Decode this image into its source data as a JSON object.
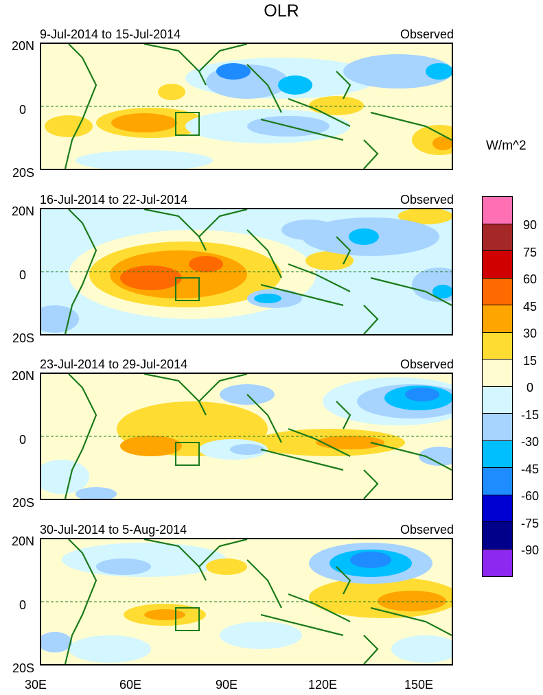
{
  "title": "OLR",
  "units": "W/m^2",
  "panels": [
    {
      "date": "9-Jul-2014 to 15-Jul-2014",
      "status": "Observed"
    },
    {
      "date": "16-Jul-2014 to 22-Jul-2014",
      "status": "Observed"
    },
    {
      "date": "23-Jul-2014 to 29-Jul-2014",
      "status": "Observed"
    },
    {
      "date": "30-Jul-2014 to 5-Aug-2014",
      "status": "Observed"
    }
  ],
  "lat_labels": [
    "20N",
    "0",
    "20S"
  ],
  "lon_labels": [
    "30E",
    "60E",
    "90E",
    "120E",
    "150E"
  ],
  "colorbar": {
    "labels": [
      "90",
      "75",
      "60",
      "45",
      "30",
      "15",
      "0",
      "-15",
      "-30",
      "-45",
      "-60",
      "-75",
      "-90"
    ],
    "colors": [
      "#ff6fb4",
      "#a52828",
      "#d10000",
      "#ff6a00",
      "#ffa500",
      "#ffdc32",
      "#fffdd0",
      "#d3f6ff",
      "#a7d3ff",
      "#00bfff",
      "#1e8cff",
      "#0000d2",
      "#00008b",
      "#8c28f0"
    ]
  }
}
